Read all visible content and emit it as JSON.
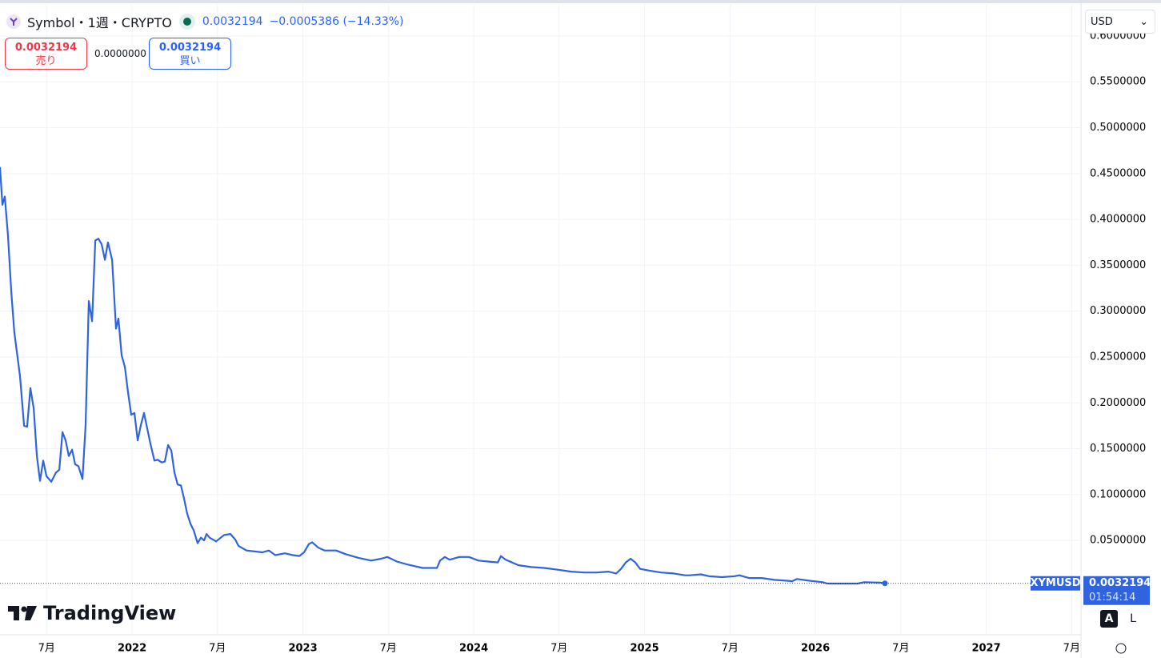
{
  "header": {
    "symbol": "Symbol・1週・CRYPTO",
    "price": "0.0032194",
    "change": "−0.0005386 (−14.33%)"
  },
  "trade": {
    "sell_price": "0.0032194",
    "sell_label": "売り",
    "spread": "0.0000000",
    "buy_price": "0.0032194",
    "buy_label": "買い"
  },
  "currency": "USD",
  "brand": "TradingView",
  "scale_buttons": [
    "A",
    "L"
  ],
  "chart_data": {
    "type": "line",
    "countdown": "01:54:14",
    "x": [
      2021.227,
      2021.241,
      2021.255,
      2021.274,
      2021.293,
      2021.311,
      2021.344,
      2021.368,
      2021.386,
      2021.405,
      2021.424,
      2021.443,
      2021.461,
      2021.48,
      2021.499,
      2021.527,
      2021.555,
      2021.574,
      2021.593,
      2021.611,
      2021.63,
      2021.649,
      2021.667,
      2021.686,
      2021.71,
      2021.728,
      2021.747,
      2021.766,
      2021.785,
      2021.803,
      2021.822,
      2021.841,
      2021.859,
      2021.883,
      2021.906,
      2021.92,
      2021.939,
      2021.958,
      2021.977,
      2021.995,
      2022.014,
      2022.033,
      2022.052,
      2022.07,
      2022.089,
      2022.108,
      2022.131,
      2022.15,
      2022.173,
      2022.192,
      2022.211,
      2022.23,
      2022.248,
      2022.267,
      2022.286,
      2022.304,
      2022.323,
      2022.342,
      2022.361,
      2022.384,
      2022.403,
      2022.422,
      2022.436,
      2022.454,
      2022.492,
      2022.539,
      2022.576,
      2022.604,
      2022.623,
      2022.67,
      2022.717,
      2022.763,
      2022.801,
      2022.838,
      2022.895,
      2022.941,
      2022.979,
      2023.007,
      2023.035,
      2023.054,
      2023.091,
      2023.127,
      2023.194,
      2023.251,
      2023.326,
      2023.4,
      2023.457,
      2023.494,
      2023.55,
      2023.607,
      2023.653,
      2023.7,
      2023.756,
      2023.785,
      2023.803,
      2023.831,
      2023.859,
      2023.916,
      2023.972,
      2024.028,
      2024.084,
      2024.141,
      2024.159,
      2024.187,
      2024.262,
      2024.337,
      2024.412,
      2024.496,
      2024.571,
      2024.646,
      2024.721,
      2024.787,
      2024.834,
      2024.862,
      2024.89,
      2024.918,
      2024.946,
      2024.974,
      2025.03,
      2025.096,
      2025.171,
      2025.237,
      2025.265,
      2025.33,
      2025.377,
      2025.452,
      2025.527,
      2025.555,
      2025.611,
      2025.686,
      2025.761,
      2025.836,
      2025.864,
      2025.892,
      2025.967,
      2026.042,
      2026.07,
      2026.164,
      2026.248,
      2026.286,
      2026.379,
      2026.407
    ],
    "series": [
      {
        "name": "XYMUSD",
        "color": "#2f63e0",
        "values": [
          0.457,
          0.416,
          0.425,
          0.382,
          0.321,
          0.277,
          0.229,
          0.175,
          0.174,
          0.216,
          0.194,
          0.142,
          0.115,
          0.137,
          0.12,
          0.114,
          0.124,
          0.127,
          0.168,
          0.159,
          0.142,
          0.149,
          0.133,
          0.131,
          0.117,
          0.176,
          0.311,
          0.289,
          0.377,
          0.379,
          0.373,
          0.356,
          0.375,
          0.356,
          0.281,
          0.292,
          0.252,
          0.239,
          0.211,
          0.187,
          0.189,
          0.159,
          0.176,
          0.189,
          0.172,
          0.155,
          0.137,
          0.138,
          0.135,
          0.136,
          0.154,
          0.148,
          0.124,
          0.111,
          0.11,
          0.096,
          0.079,
          0.068,
          0.061,
          0.047,
          0.053,
          0.05,
          0.057,
          0.053,
          0.049,
          0.056,
          0.057,
          0.051,
          0.044,
          0.039,
          0.038,
          0.037,
          0.039,
          0.034,
          0.036,
          0.034,
          0.033,
          0.037,
          0.046,
          0.048,
          0.042,
          0.039,
          0.039,
          0.035,
          0.031,
          0.028,
          0.03,
          0.032,
          0.027,
          0.024,
          0.022,
          0.02,
          0.02,
          0.02,
          0.028,
          0.032,
          0.029,
          0.032,
          0.032,
          0.028,
          0.027,
          0.026,
          0.033,
          0.029,
          0.023,
          0.021,
          0.02,
          0.018,
          0.016,
          0.015,
          0.015,
          0.016,
          0.014,
          0.019,
          0.026,
          0.03,
          0.026,
          0.019,
          0.017,
          0.015,
          0.014,
          0.012,
          0.012,
          0.013,
          0.011,
          0.01,
          0.011,
          0.012,
          0.009,
          0.009,
          0.007,
          0.006,
          0.0055,
          0.008,
          0.006,
          0.0045,
          0.003,
          0.003,
          0.003,
          0.0045,
          0.004,
          0.0032194
        ]
      }
    ],
    "xlim": [
      2021.227,
      2027.55
    ],
    "ylim": [
      -0.052,
      0.634
    ],
    "xticks": [
      {
        "value": 2021.5,
        "label": "7月"
      },
      2022,
      {
        "value": 2022.5,
        "label": "7月"
      },
      2023,
      {
        "value": 2023.5,
        "label": "7月"
      },
      2024,
      {
        "value": 2024.5,
        "label": "7月"
      },
      2025,
      {
        "value": 2025.5,
        "label": "7月"
      },
      2026,
      {
        "value": 2026.5,
        "label": "7月"
      },
      2027,
      {
        "value": 2027.5,
        "label": "7月"
      }
    ],
    "yticks": [
      {
        "value": 0.05,
        "label": "0.0500000"
      },
      {
        "value": 0.1,
        "label": "0.1000000"
      },
      {
        "value": 0.15,
        "label": "0.1500000"
      },
      {
        "value": 0.2,
        "label": "0.2000000"
      },
      {
        "value": 0.25,
        "label": "0.2500000"
      },
      {
        "value": 0.3,
        "label": "0.3000000"
      },
      {
        "value": 0.35,
        "label": "0.3500000"
      },
      {
        "value": 0.4,
        "label": "0.4000000"
      },
      {
        "value": 0.45,
        "label": "0.4500000"
      },
      {
        "value": 0.5,
        "label": "0.5000000"
      },
      {
        "value": 0.55,
        "label": "0.5500000"
      },
      {
        "value": 0.6,
        "label": "0.6000000"
      }
    ],
    "grid": true
  }
}
